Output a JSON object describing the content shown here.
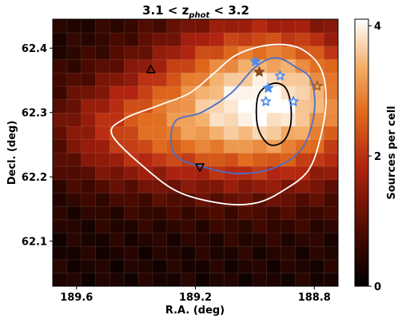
{
  "chart_data": {
    "type": "heatmap",
    "title_main": "3.1 < z",
    "title_sub": "phot",
    "title_tail": " < 3.2",
    "xlabel": "R.A. (deg)",
    "ylabel": "Decl. (deg)",
    "xlim": [
      189.68,
      188.72
    ],
    "ylim": [
      62.03,
      62.445
    ],
    "xticks": [
      189.6,
      189.2,
      188.8
    ],
    "xtick_labels": [
      "189.6",
      "189.2",
      "188.8"
    ],
    "yticks": [
      62.1,
      62.2,
      62.3,
      62.4
    ],
    "ytick_labels": [
      "62.1",
      "62.2",
      "62.3",
      "62.4"
    ],
    "colorbar": {
      "label": "Sources per cell",
      "range": [
        0,
        4.1
      ],
      "ticks": [
        0,
        2,
        4
      ],
      "tick_labels": [
        "0",
        "2",
        "4"
      ]
    },
    "grid": {
      "nx": 20,
      "ny": 20,
      "peak_ra": 188.96,
      "peak_dec": 62.317,
      "peak_value": 4.1,
      "background": 0.3,
      "sigma_ra": 0.26,
      "sigma_dec": 0.085,
      "secondary_ra": 189.42,
      "secondary_dec": 62.27,
      "secondary_value": 1.4,
      "secondary_sigma_ra": 0.2,
      "secondary_sigma_dec": 0.06
    },
    "contours": [
      {
        "level": "outer",
        "color": "#ffffff",
        "points": [
          [
            189.48,
            62.265
          ],
          [
            189.36,
            62.21
          ],
          [
            189.25,
            62.175
          ],
          [
            189.1,
            62.158
          ],
          [
            188.99,
            62.16
          ],
          [
            188.9,
            62.18
          ],
          [
            188.82,
            62.21
          ],
          [
            188.78,
            62.26
          ],
          [
            188.76,
            62.32
          ],
          [
            188.78,
            62.37
          ],
          [
            188.85,
            62.4
          ],
          [
            188.95,
            62.405
          ],
          [
            189.06,
            62.39
          ],
          [
            189.14,
            62.36
          ],
          [
            189.22,
            62.33
          ],
          [
            189.33,
            62.31
          ],
          [
            189.44,
            62.29
          ],
          [
            189.48,
            62.265
          ]
        ]
      },
      {
        "level": "middle",
        "color": "#4a6fc8",
        "points": [
          [
            189.27,
            62.235
          ],
          [
            189.17,
            62.215
          ],
          [
            189.05,
            62.205
          ],
          [
            188.93,
            62.215
          ],
          [
            188.84,
            62.245
          ],
          [
            188.8,
            62.3
          ],
          [
            188.81,
            62.35
          ],
          [
            188.86,
            62.37
          ],
          [
            188.93,
            62.385
          ],
          [
            189.0,
            62.37
          ],
          [
            189.08,
            62.33
          ],
          [
            189.18,
            62.3
          ],
          [
            189.27,
            62.285
          ],
          [
            189.27,
            62.235
          ]
        ]
      },
      {
        "level": "inner",
        "color": "#000000",
        "points": [
          [
            188.995,
            62.3
          ],
          [
            188.985,
            62.27
          ],
          [
            188.95,
            62.25
          ],
          [
            188.905,
            62.255
          ],
          [
            188.88,
            62.28
          ],
          [
            188.88,
            62.315
          ],
          [
            188.9,
            62.34
          ],
          [
            188.94,
            62.345
          ],
          [
            188.985,
            62.33
          ],
          [
            188.995,
            62.3
          ]
        ]
      }
    ],
    "markers": [
      {
        "ra": 188.998,
        "dec": 62.379,
        "shape": "star",
        "color": "#4a8df0",
        "filled": true
      },
      {
        "ra": 188.985,
        "dec": 62.363,
        "shape": "star",
        "color": "#8a4a1e",
        "filled": true
      },
      {
        "ra": 188.915,
        "dec": 62.357,
        "shape": "star",
        "color": "#4a8df0",
        "filled": false
      },
      {
        "ra": 188.955,
        "dec": 62.338,
        "shape": "star",
        "color": "#4a8df0",
        "filled": true
      },
      {
        "ra": 188.963,
        "dec": 62.317,
        "shape": "star",
        "color": "#4a8df0",
        "filled": false
      },
      {
        "ra": 188.87,
        "dec": 62.317,
        "shape": "star",
        "color": "#4a8df0",
        "filled": false
      },
      {
        "ra": 188.79,
        "dec": 62.341,
        "shape": "star",
        "color": "#a0602a",
        "filled": false
      },
      {
        "ra": 189.35,
        "dec": 62.367,
        "shape": "triangle-up",
        "color": "#000000",
        "filled": false
      },
      {
        "ra": 189.185,
        "dec": 62.215,
        "shape": "triangle-down",
        "color": "#000000",
        "filled": false
      }
    ]
  }
}
